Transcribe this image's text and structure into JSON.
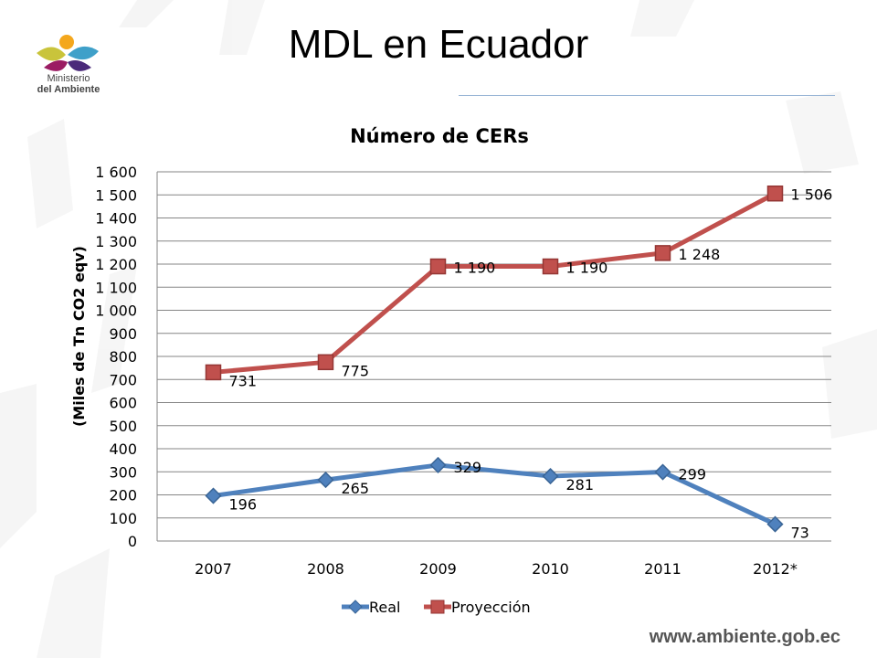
{
  "slide": {
    "title": "MDL en Ecuador",
    "footer_url": "www.ambiente.gob.ec",
    "logo_line1": "Ministerio",
    "logo_line2": "del Ambiente"
  },
  "colors": {
    "real": "#4f81bd",
    "real_dark": "#3a6596",
    "proyeccion": "#c0504d",
    "proyeccion_dark": "#943634",
    "grid": "#868686"
  },
  "chart_data": {
    "type": "line",
    "title": "Número de CERs",
    "ylabel": "(Miles de Tn CO2 eqv)",
    "xlabel": "",
    "categories": [
      "2007",
      "2008",
      "2009",
      "2010",
      "2011",
      "2012*"
    ],
    "ylim": [
      0,
      1600
    ],
    "ytick_labels": [
      "0",
      "100",
      "200",
      "300",
      "400",
      "500",
      "600",
      "700",
      "800",
      "900",
      "1 000",
      "1 100",
      "1 200",
      "1 300",
      "1 400",
      "1 500",
      "1 600"
    ],
    "grid": true,
    "legend": "bottom",
    "series": [
      {
        "name": "Real",
        "values": [
          196,
          265,
          329,
          281,
          299,
          73
        ],
        "labels": [
          "196",
          "265",
          "329",
          "281",
          "299",
          "73"
        ],
        "marker": "diamond"
      },
      {
        "name": "Proyección",
        "values": [
          731,
          775,
          1190,
          1190,
          1248,
          1506
        ],
        "labels": [
          "731",
          "775",
          "1 190",
          "1 190",
          "1 248",
          "1 506"
        ],
        "marker": "square"
      }
    ]
  }
}
